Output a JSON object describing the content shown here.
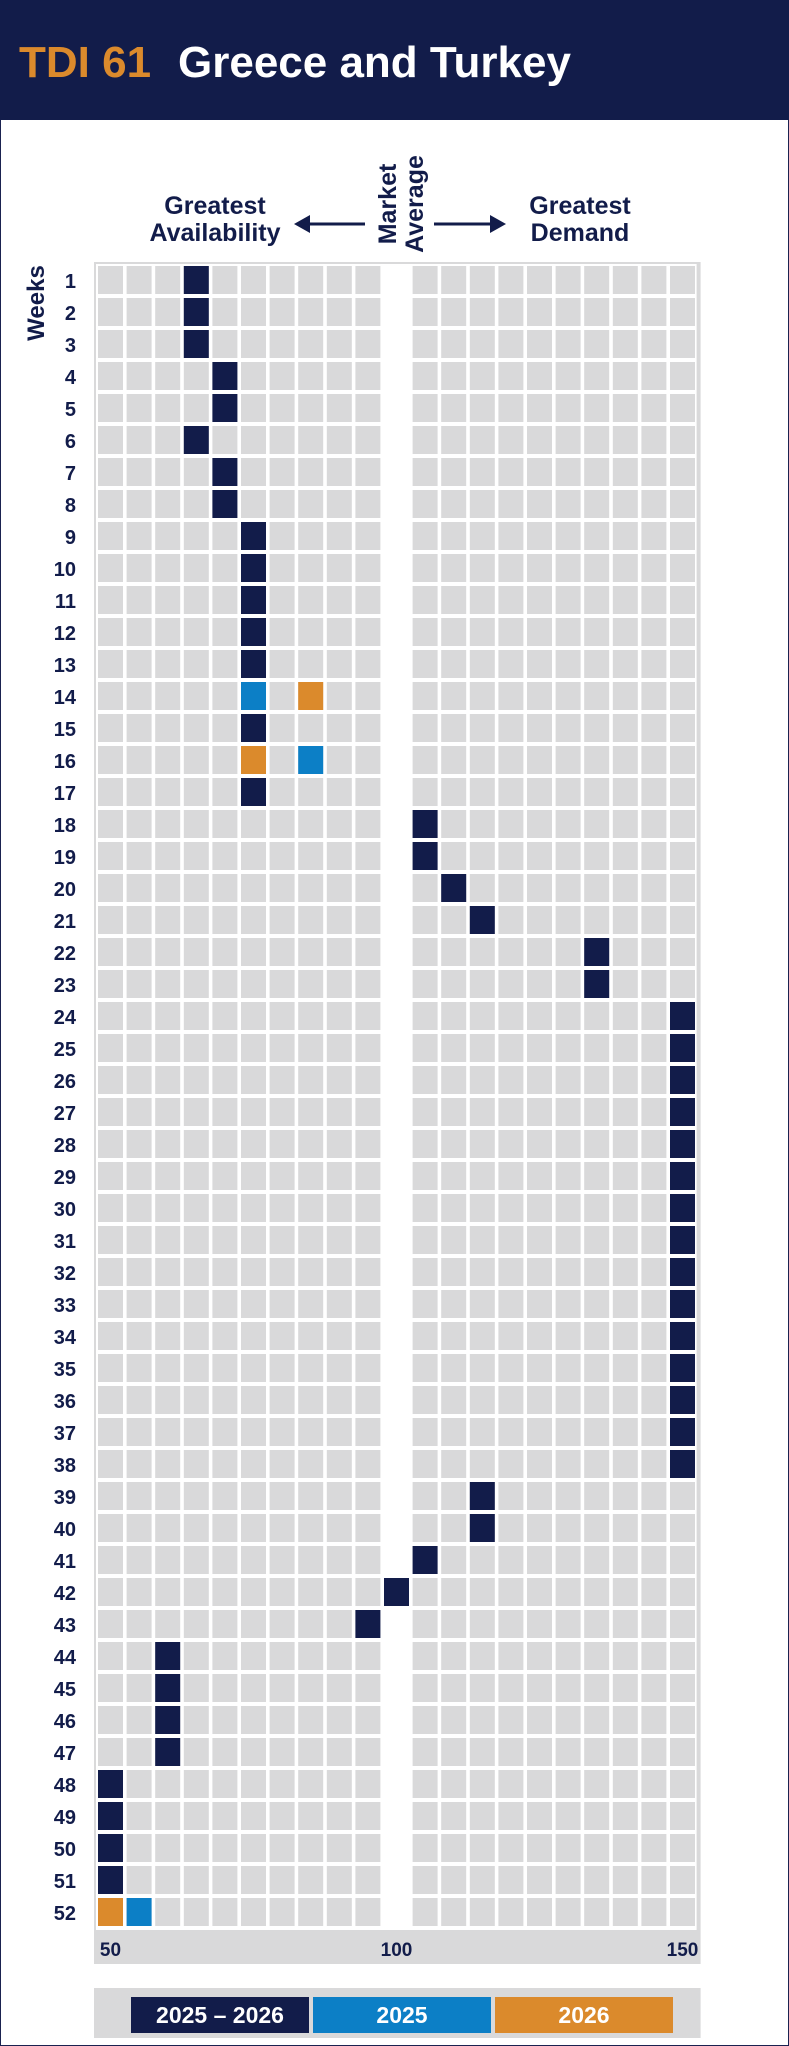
{
  "header": {
    "code": "TDI 61",
    "title": "Greece and Turkey"
  },
  "labels": {
    "left": "Greatest\nAvailability",
    "middle": "Market\nAverage",
    "right": "Greatest\nDemand"
  },
  "colors": {
    "header_bg": "#121c4a",
    "cell_empty": "#d9d9da",
    "grid_bg": "#ffffff",
    "series_2025_2026": "#121c4a",
    "series_2025": "#0c7fc6",
    "series_2026": "#db8a2c"
  },
  "chart_data": {
    "type": "heatmap",
    "ylabel": "Weeks",
    "x_ticks": [
      "50",
      "100",
      "150"
    ],
    "xlim": [
      50,
      150
    ],
    "x_step": 5,
    "market_average": 100,
    "legend": [
      {
        "label": "2025 – 2026",
        "color": "#121c4a"
      },
      {
        "label": "2025",
        "color": "#0c7fc6"
      },
      {
        "label": "2026",
        "color": "#db8a2c"
      }
    ],
    "series": [
      {
        "name": "2025 – 2026",
        "color": "#121c4a",
        "points": [
          {
            "week": 1,
            "x": 65
          },
          {
            "week": 2,
            "x": 65
          },
          {
            "week": 3,
            "x": 65
          },
          {
            "week": 4,
            "x": 70
          },
          {
            "week": 5,
            "x": 70
          },
          {
            "week": 6,
            "x": 65
          },
          {
            "week": 7,
            "x": 70
          },
          {
            "week": 8,
            "x": 70
          },
          {
            "week": 9,
            "x": 75
          },
          {
            "week": 10,
            "x": 75
          },
          {
            "week": 11,
            "x": 75
          },
          {
            "week": 12,
            "x": 75
          },
          {
            "week": 13,
            "x": 75
          },
          {
            "week": 15,
            "x": 75
          },
          {
            "week": 17,
            "x": 75
          },
          {
            "week": 18,
            "x": 105
          },
          {
            "week": 19,
            "x": 105
          },
          {
            "week": 20,
            "x": 110
          },
          {
            "week": 21,
            "x": 115
          },
          {
            "week": 22,
            "x": 135
          },
          {
            "week": 23,
            "x": 135
          },
          {
            "week": 24,
            "x": 150
          },
          {
            "week": 25,
            "x": 150
          },
          {
            "week": 26,
            "x": 150
          },
          {
            "week": 27,
            "x": 150
          },
          {
            "week": 28,
            "x": 150
          },
          {
            "week": 29,
            "x": 150
          },
          {
            "week": 30,
            "x": 150
          },
          {
            "week": 31,
            "x": 150
          },
          {
            "week": 32,
            "x": 150
          },
          {
            "week": 33,
            "x": 150
          },
          {
            "week": 34,
            "x": 150
          },
          {
            "week": 35,
            "x": 150
          },
          {
            "week": 36,
            "x": 150
          },
          {
            "week": 37,
            "x": 150
          },
          {
            "week": 38,
            "x": 150
          },
          {
            "week": 39,
            "x": 115
          },
          {
            "week": 40,
            "x": 115
          },
          {
            "week": 41,
            "x": 105
          },
          {
            "week": 42,
            "x": 100
          },
          {
            "week": 43,
            "x": 95
          },
          {
            "week": 44,
            "x": 60
          },
          {
            "week": 45,
            "x": 60
          },
          {
            "week": 46,
            "x": 60
          },
          {
            "week": 47,
            "x": 60
          },
          {
            "week": 48,
            "x": 50
          },
          {
            "week": 49,
            "x": 50
          },
          {
            "week": 50,
            "x": 50
          },
          {
            "week": 51,
            "x": 50
          }
        ]
      },
      {
        "name": "2025",
        "color": "#0c7fc6",
        "points": [
          {
            "week": 14,
            "x": 75
          },
          {
            "week": 16,
            "x": 85
          },
          {
            "week": 52,
            "x": 55
          }
        ]
      },
      {
        "name": "2026",
        "color": "#db8a2c",
        "points": [
          {
            "week": 14,
            "x": 85
          },
          {
            "week": 16,
            "x": 75
          },
          {
            "week": 52,
            "x": 50
          }
        ]
      }
    ]
  }
}
